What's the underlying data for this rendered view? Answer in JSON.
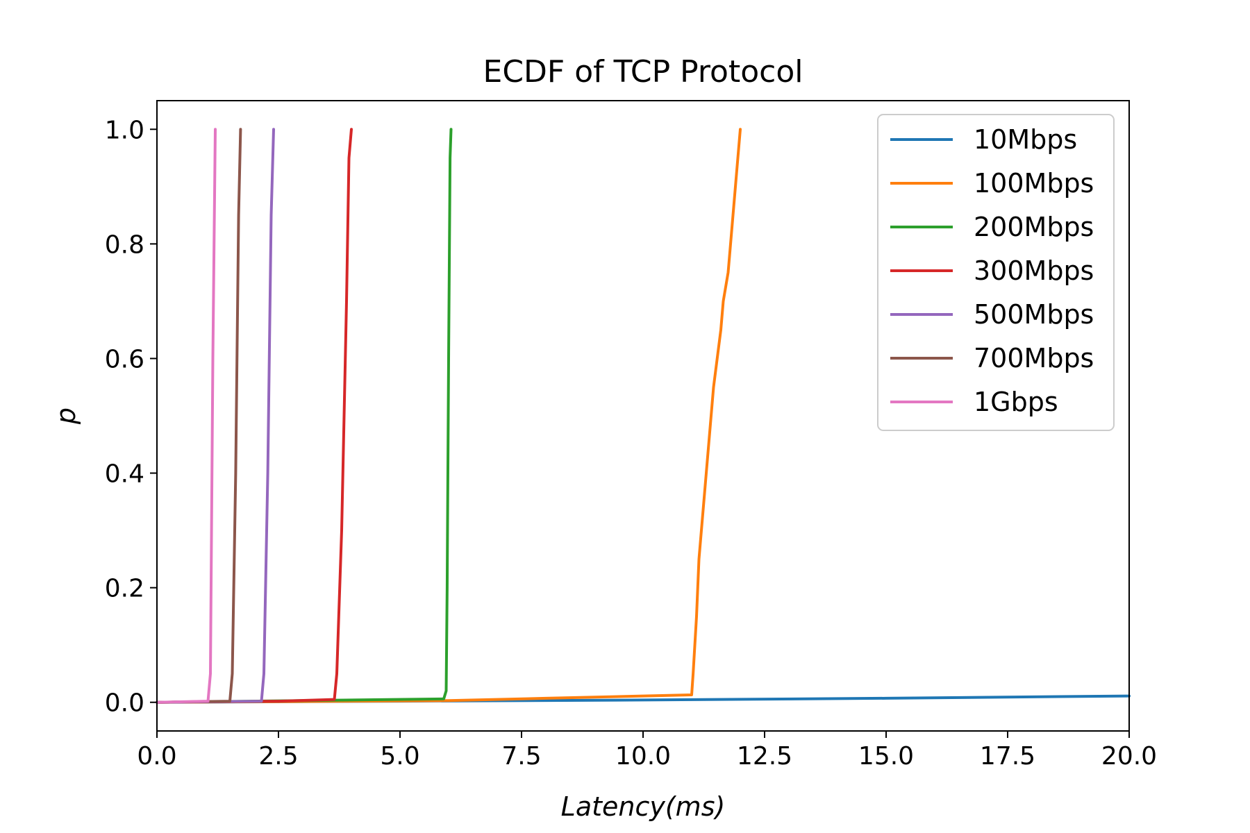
{
  "chart_data": {
    "type": "line",
    "title": "ECDF of TCP Protocol",
    "xlabel": "Latency(ms)",
    "ylabel": "p",
    "xlim": [
      0,
      20
    ],
    "ylim": [
      -0.05,
      1.05
    ],
    "xticks": [
      0,
      2.5,
      5,
      7.5,
      10,
      12.5,
      15,
      17.5,
      20
    ],
    "xtick_labels": [
      "0.0",
      "2.5",
      "5.0",
      "7.5",
      "10.0",
      "12.5",
      "15.0",
      "17.5",
      "20.0"
    ],
    "yticks": [
      0,
      0.2,
      0.4,
      0.6,
      0.8,
      1.0
    ],
    "ytick_labels": [
      "0.0",
      "0.2",
      "0.4",
      "0.6",
      "0.8",
      "1.0"
    ],
    "grid": false,
    "legend_position": "top-right",
    "series": [
      {
        "name": "10Mbps",
        "color": "#1f77b4",
        "x": [
          0,
          5,
          10,
          15,
          20
        ],
        "y": [
          0,
          0.002,
          0.004,
          0.007,
          0.011
        ]
      },
      {
        "name": "100Mbps",
        "color": "#ff7f0e",
        "x": [
          0,
          6.0,
          8.0,
          10.0,
          11.0,
          11.03,
          11.1,
          11.15,
          11.25,
          11.3,
          11.4,
          11.45,
          11.6,
          11.65,
          11.75,
          11.8,
          11.9,
          11.95,
          12.0
        ],
        "y": [
          0,
          0.003,
          0.007,
          0.011,
          0.013,
          0.05,
          0.15,
          0.25,
          0.35,
          0.4,
          0.5,
          0.55,
          0.65,
          0.7,
          0.75,
          0.8,
          0.9,
          0.95,
          1.0
        ]
      },
      {
        "name": "200Mbps",
        "color": "#2ca02c",
        "x": [
          0,
          3.0,
          5.9,
          5.95,
          5.97,
          6.0,
          6.03,
          6.05
        ],
        "y": [
          0,
          0.003,
          0.006,
          0.02,
          0.2,
          0.6,
          0.95,
          1.0
        ]
      },
      {
        "name": "300Mbps",
        "color": "#d62728",
        "x": [
          0,
          2.5,
          3.65,
          3.7,
          3.8,
          3.9,
          3.95,
          4.0
        ],
        "y": [
          0,
          0.002,
          0.005,
          0.05,
          0.3,
          0.7,
          0.95,
          1.0
        ]
      },
      {
        "name": "500Mbps",
        "color": "#9467bd",
        "x": [
          0,
          2.15,
          2.2,
          2.28,
          2.35,
          2.4
        ],
        "y": [
          0,
          0.002,
          0.05,
          0.4,
          0.85,
          1.0
        ]
      },
      {
        "name": "700Mbps",
        "color": "#8c564b",
        "x": [
          0,
          1.5,
          1.55,
          1.62,
          1.68,
          1.72
        ],
        "y": [
          0,
          0.002,
          0.05,
          0.4,
          0.85,
          1.0
        ]
      },
      {
        "name": "1Gbps",
        "color": "#e377c2",
        "x": [
          0,
          1.05,
          1.1,
          1.15,
          1.2
        ],
        "y": [
          0,
          0.002,
          0.05,
          0.6,
          1.0
        ]
      }
    ]
  }
}
